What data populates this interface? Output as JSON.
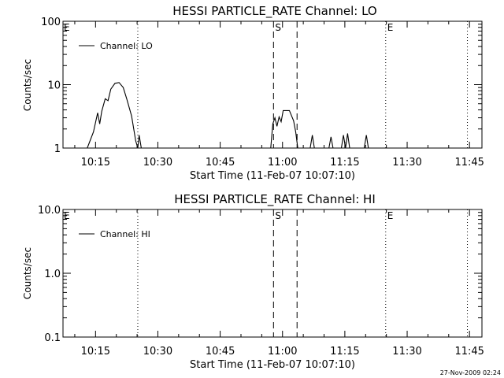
{
  "footer": {
    "timestamp": "27-Nov-2009 02:24"
  },
  "chart_data": [
    {
      "type": "line",
      "title": "HESSI PARTICLE_RATE Channel: LO",
      "xlabel": "Start Time (11-Feb-07 10:07:10)",
      "ylabel": "Counts/sec",
      "yscale": "log",
      "ylim": [
        1,
        100
      ],
      "y_tick_labels": [
        "1",
        "10",
        "100"
      ],
      "x_tick_labels": [
        "10:15",
        "10:30",
        "10:45",
        "11:00",
        "11:15",
        "11:30",
        "11:45"
      ],
      "xlim": [
        "10:07:10",
        "11:48:00"
      ],
      "legend": "top-left",
      "series": [
        {
          "name": "Channel: LO",
          "points": [
            [
              "10:13:00",
              1.0
            ],
            [
              "10:14:30",
              1.8
            ],
            [
              "10:15:30",
              3.6
            ],
            [
              "10:16:00",
              2.4
            ],
            [
              "10:16:30",
              3.8
            ],
            [
              "10:17:20",
              6.0
            ],
            [
              "10:18:00",
              5.6
            ],
            [
              "10:18:40",
              8.5
            ],
            [
              "10:19:40",
              10.5
            ],
            [
              "10:20:40",
              10.8
            ],
            [
              "10:21:40",
              9.0
            ],
            [
              "10:22:30",
              6.0
            ],
            [
              "10:23:40",
              3.2
            ],
            [
              "10:24:40",
              1.3
            ],
            [
              "10:25:10",
              1.0
            ],
            [
              "10:25:30",
              1.6
            ],
            [
              "10:26:00",
              1.0
            ],
            [
              "10:57:10",
              1.0
            ],
            [
              "10:57:40",
              2.4
            ],
            [
              "10:58:10",
              3.0
            ],
            [
              "10:58:40",
              2.2
            ],
            [
              "10:59:10",
              3.1
            ],
            [
              "10:59:40",
              2.6
            ],
            [
              "11:00:10",
              3.9
            ],
            [
              "11:01:40",
              3.9
            ],
            [
              "11:02:40",
              2.7
            ],
            [
              "11:03:10",
              1.8
            ],
            [
              "11:03:40",
              1.0
            ],
            [
              "11:06:40",
              1.0
            ],
            [
              "11:07:10",
              1.6
            ],
            [
              "11:07:40",
              1.0
            ],
            [
              "11:11:10",
              1.0
            ],
            [
              "11:11:40",
              1.5
            ],
            [
              "11:12:10",
              1.0
            ],
            [
              "11:14:10",
              1.0
            ],
            [
              "11:14:40",
              1.6
            ],
            [
              "11:15:10",
              1.0
            ],
            [
              "11:15:40",
              1.7
            ],
            [
              "11:16:10",
              1.0
            ],
            [
              "11:19:40",
              1.0
            ],
            [
              "11:20:10",
              1.6
            ],
            [
              "11:20:40",
              1.0
            ]
          ]
        }
      ],
      "markers": [
        {
          "time": "10:25:10",
          "style": "dotted",
          "label": ""
        },
        {
          "time": "10:57:50",
          "style": "dashed",
          "label": "S"
        },
        {
          "time": "11:03:30",
          "style": "dashed",
          "label": ""
        },
        {
          "time": "11:24:50",
          "style": "dotted",
          "label": "E"
        },
        {
          "time": "11:44:30",
          "style": "dotted",
          "label": ""
        }
      ],
      "corner_label": "E"
    },
    {
      "type": "line",
      "title": "HESSI PARTICLE_RATE Channel: HI",
      "xlabel": "Start Time (11-Feb-07 10:07:10)",
      "ylabel": "Counts/sec",
      "yscale": "log",
      "ylim": [
        0.1,
        10.0
      ],
      "y_tick_labels": [
        "0.1",
        "1.0",
        "10.0"
      ],
      "x_tick_labels": [
        "10:15",
        "10:30",
        "10:45",
        "11:00",
        "11:15",
        "11:30",
        "11:45"
      ],
      "xlim": [
        "10:07:10",
        "11:48:00"
      ],
      "legend": "top-left",
      "series": [
        {
          "name": "Channel: HI",
          "points": []
        }
      ],
      "markers": [
        {
          "time": "10:25:10",
          "style": "dotted",
          "label": ""
        },
        {
          "time": "10:57:50",
          "style": "dashed",
          "label": "S"
        },
        {
          "time": "11:03:30",
          "style": "dashed",
          "label": ""
        },
        {
          "time": "11:24:50",
          "style": "dotted",
          "label": "E"
        },
        {
          "time": "11:44:30",
          "style": "dotted",
          "label": ""
        }
      ],
      "corner_label": "E"
    }
  ]
}
